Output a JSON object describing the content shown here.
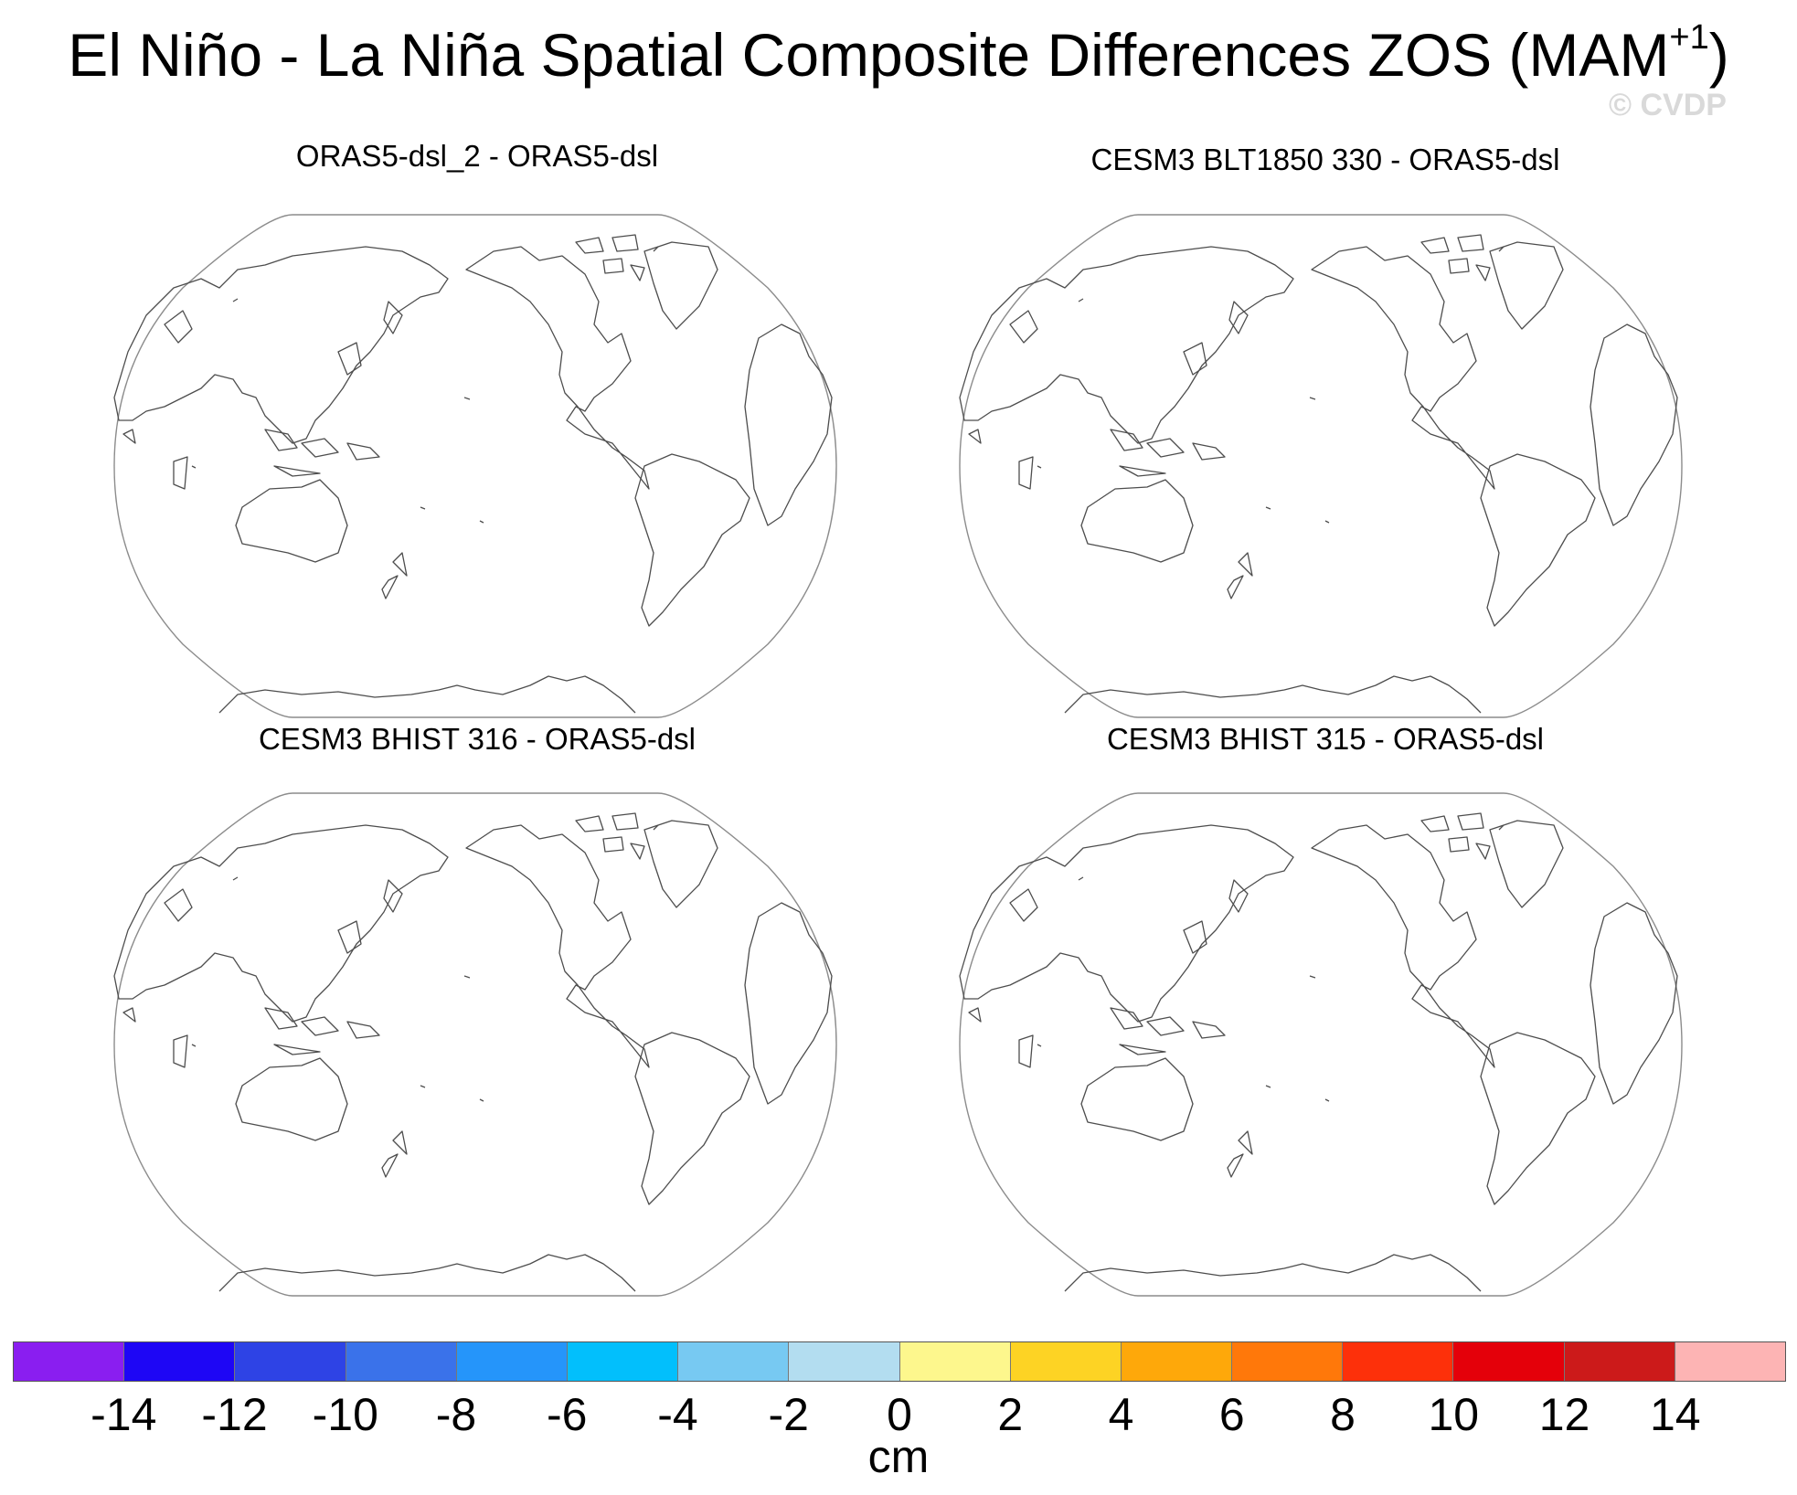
{
  "title": {
    "main": "El Niño - La Niña Spatial Composite Differences ZOS (MAM",
    "superscript": "+1",
    "close": ")"
  },
  "watermark": "© CVDP",
  "panels": [
    {
      "title": "ORAS5-dsl_2 - ORAS5-dsl"
    },
    {
      "title": "CESM3 BLT1850 330 - ORAS5-dsl"
    },
    {
      "title": "CESM3 BHIST 316 - ORAS5-dsl"
    },
    {
      "title": "CESM3 BHIST 315 - ORAS5-dsl"
    }
  ],
  "colorbar": {
    "units": "cm",
    "tick_labels": [
      "-14",
      "-12",
      "-10",
      "-8",
      "-6",
      "-4",
      "-2",
      "0",
      "2",
      "4",
      "6",
      "8",
      "10",
      "12",
      "14"
    ],
    "colors": [
      "#8a1ef0",
      "#1e06f5",
      "#2e43e5",
      "#3a72ea",
      "#2595fa",
      "#02bffc",
      "#77c9f2",
      "#b3ddf0",
      "#fdf78d",
      "#fdd324",
      "#fea80a",
      "#ff780a",
      "#fd300a",
      "#e4000a",
      "#cc1a1a",
      "#fdb4b4"
    ]
  }
}
